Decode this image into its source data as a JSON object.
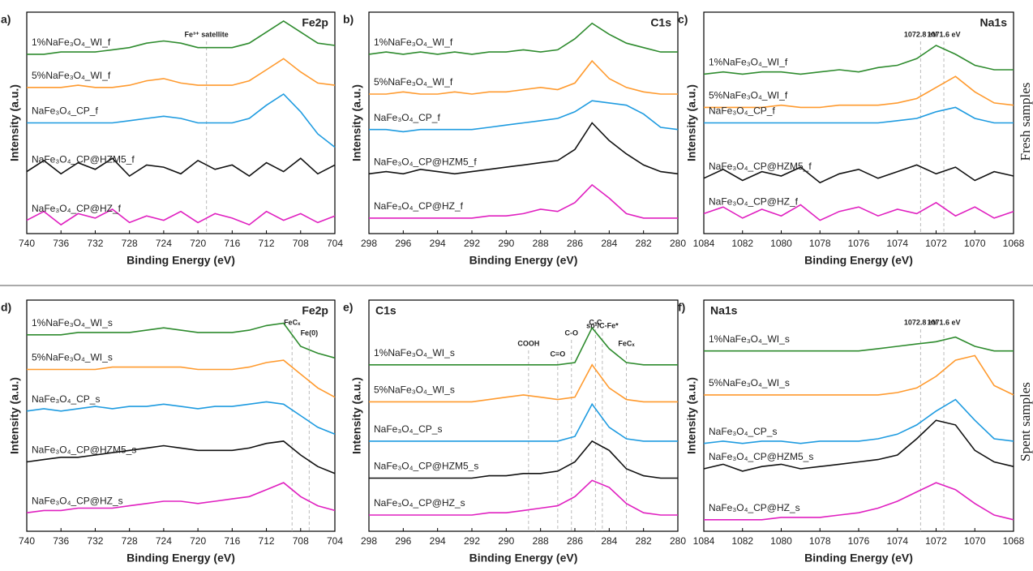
{
  "side_labels": [
    "Fresh samples",
    "Spent samples"
  ],
  "chart_data": [
    {
      "type": "line",
      "panel": "a)",
      "element": "Fe2p",
      "xlabel": "Binding Energy (eV)",
      "ylabel": "Intensity (a.u.)",
      "xlim": [
        740,
        704
      ],
      "xticks": [
        740,
        736,
        732,
        728,
        724,
        720,
        716,
        712,
        708,
        704
      ],
      "ylim": [
        0,
        100
      ],
      "x": [
        740,
        738,
        736,
        734,
        732,
        730,
        728,
        726,
        724,
        722,
        720,
        718,
        716,
        714,
        712,
        710,
        708,
        706,
        704
      ],
      "annotations": [
        {
          "text": "Fe³⁺ satellite",
          "x": 719
        }
      ],
      "series": [
        {
          "name": "1%NaFe₃O₄_WI_f",
          "color": "#2e8b2e",
          "values": [
            81,
            81,
            82,
            82,
            82,
            83,
            84,
            86,
            87,
            86,
            84,
            84,
            84,
            86,
            91,
            96,
            91,
            86,
            85
          ]
        },
        {
          "name": "5%NaFe₃O₄_WI_f",
          "color": "#ff9a2e",
          "values": [
            66,
            66,
            66,
            67,
            66,
            66,
            67,
            69,
            70,
            68,
            67,
            67,
            67,
            69,
            74,
            79,
            73,
            68,
            67
          ]
        },
        {
          "name": "NaFe₃O₄_CP_f",
          "color": "#1e9be0",
          "values": [
            50,
            50,
            50,
            50,
            50,
            50,
            51,
            52,
            53,
            52,
            50,
            50,
            50,
            52,
            58,
            63,
            55,
            45,
            39
          ]
        },
        {
          "name": "NaFe₃O₄_CP@HZM5_f",
          "color": "#111111",
          "values": [
            28,
            33,
            27,
            32,
            29,
            34,
            26,
            31,
            30,
            27,
            33,
            29,
            31,
            26,
            32,
            28,
            34,
            27,
            31
          ]
        },
        {
          "name": "NaFe₃O₄_CP@HZ_f",
          "color": "#e020c0",
          "values": [
            6,
            10,
            4,
            9,
            7,
            11,
            5,
            8,
            6,
            10,
            5,
            9,
            7,
            4,
            10,
            6,
            9,
            5,
            8
          ]
        }
      ]
    },
    {
      "type": "line",
      "panel": "b)",
      "element": "C1s",
      "xlabel": "Binding Energy (eV)",
      "ylabel": "Intensity (a.u.)",
      "xlim": [
        298,
        280
      ],
      "xticks": [
        298,
        296,
        294,
        292,
        290,
        288,
        286,
        284,
        282,
        280
      ],
      "ylim": [
        0,
        100
      ],
      "x": [
        298,
        297,
        296,
        295,
        294,
        293,
        292,
        291,
        290,
        289,
        288,
        287,
        286,
        285,
        284,
        283,
        282,
        281,
        280
      ],
      "annotations": [],
      "series": [
        {
          "name": "1%NaFe₃O₄_WI_f",
          "color": "#2e8b2e",
          "values": [
            81,
            82,
            81,
            82,
            81,
            82,
            81,
            82,
            82,
            83,
            82,
            83,
            88,
            95,
            90,
            86,
            84,
            82,
            82
          ]
        },
        {
          "name": "5%NaFe₃O₄_WI_f",
          "color": "#ff9a2e",
          "values": [
            63,
            63,
            64,
            63,
            63,
            64,
            63,
            64,
            64,
            65,
            66,
            65,
            68,
            78,
            70,
            66,
            64,
            63,
            63
          ]
        },
        {
          "name": "NaFe₃O₄_CP_f",
          "color": "#1e9be0",
          "values": [
            47,
            47,
            46,
            47,
            47,
            47,
            47,
            48,
            49,
            50,
            51,
            52,
            55,
            60,
            59,
            58,
            54,
            48,
            47
          ]
        },
        {
          "name": "NaFe₃O₄_CP@HZM5_f",
          "color": "#111111",
          "values": [
            27,
            28,
            27,
            29,
            28,
            27,
            28,
            29,
            30,
            31,
            32,
            33,
            38,
            50,
            42,
            36,
            31,
            28,
            27
          ]
        },
        {
          "name": "NaFe₃O₄_CP@HZ_f",
          "color": "#e020c0",
          "values": [
            7,
            7,
            7,
            7,
            7,
            7,
            7,
            8,
            8,
            9,
            11,
            10,
            14,
            22,
            16,
            9,
            7,
            7,
            7
          ]
        }
      ]
    },
    {
      "type": "line",
      "panel": "c)",
      "element": "Na1s",
      "xlabel": "Binding Energy (eV)",
      "ylabel": "Intensity (a.u.)",
      "xlim": [
        1084,
        1068
      ],
      "xticks": [
        1084,
        1082,
        1080,
        1078,
        1076,
        1074,
        1072,
        1070,
        1068
      ],
      "ylim": [
        0,
        100
      ],
      "x": [
        1084,
        1083,
        1082,
        1081,
        1080,
        1079,
        1078,
        1077,
        1076,
        1075,
        1074,
        1073,
        1072,
        1071,
        1070,
        1069,
        1068
      ],
      "annotations": [
        {
          "text": "1072.8 eV",
          "x": 1072.8
        },
        {
          "text": "1071.6 eV",
          "x": 1071.6
        }
      ],
      "series": [
        {
          "name": "1%NaFe₃O₄_WI_f",
          "color": "#2e8b2e",
          "values": [
            72,
            73,
            72,
            73,
            73,
            72,
            73,
            74,
            73,
            75,
            76,
            79,
            85,
            81,
            76,
            74,
            74
          ]
        },
        {
          "name": "5%NaFe₃O₄_WI_f",
          "color": "#ff9a2e",
          "values": [
            57,
            57,
            57,
            57,
            58,
            57,
            57,
            58,
            58,
            58,
            59,
            61,
            66,
            71,
            64,
            59,
            58
          ]
        },
        {
          "name": "NaFe₃O₄_CP_f",
          "color": "#1e9be0",
          "values": [
            50,
            50,
            50,
            50,
            50,
            50,
            50,
            50,
            50,
            50,
            51,
            52,
            55,
            57,
            52,
            50,
            50
          ]
        },
        {
          "name": "NaFe₃O₄_CP@HZM5_f",
          "color": "#111111",
          "values": [
            25,
            29,
            24,
            28,
            26,
            30,
            23,
            27,
            29,
            25,
            28,
            31,
            27,
            30,
            24,
            28,
            26
          ]
        },
        {
          "name": "NaFe₃O₄_CP@HZ_f",
          "color": "#e020c0",
          "values": [
            9,
            12,
            7,
            11,
            8,
            13,
            6,
            10,
            12,
            8,
            11,
            9,
            14,
            8,
            12,
            7,
            10
          ]
        }
      ]
    },
    {
      "type": "line",
      "panel": "d)",
      "element": "Fe2p",
      "xlabel": "Binding Energy (eV)",
      "ylabel": "Intensity (a.u.)",
      "xlim": [
        740,
        704
      ],
      "xticks": [
        740,
        736,
        732,
        728,
        724,
        720,
        716,
        712,
        708,
        704
      ],
      "ylim": [
        0,
        100
      ],
      "x": [
        740,
        738,
        736,
        734,
        732,
        730,
        728,
        726,
        724,
        722,
        720,
        718,
        716,
        714,
        712,
        710,
        708,
        706,
        704
      ],
      "annotations": [
        {
          "text": "FeCₓ",
          "x": 709
        },
        {
          "text": "Fe(0)",
          "x": 707
        }
      ],
      "series": [
        {
          "name": "1%NaFe₃O₄_WI_s",
          "color": "#2e8b2e",
          "values": [
            85,
            85,
            85,
            86,
            86,
            86,
            86,
            87,
            88,
            87,
            86,
            86,
            86,
            87,
            89,
            90,
            80,
            77,
            75
          ]
        },
        {
          "name": "5%NaFe₃O₄_WI_s",
          "color": "#ff9a2e",
          "values": [
            70,
            70,
            70,
            70,
            70,
            71,
            71,
            71,
            71,
            71,
            70,
            70,
            70,
            71,
            73,
            74,
            68,
            62,
            58
          ]
        },
        {
          "name": "NaFe₃O₄_CP_s",
          "color": "#1e9be0",
          "values": [
            52,
            53,
            52,
            53,
            54,
            53,
            54,
            54,
            55,
            54,
            53,
            54,
            54,
            55,
            56,
            55,
            50,
            45,
            42
          ]
        },
        {
          "name": "NaFe₃O₄_CP@HZM5_s",
          "color": "#111111",
          "values": [
            30,
            31,
            32,
            32,
            33,
            34,
            35,
            36,
            37,
            36,
            35,
            35,
            35,
            36,
            38,
            39,
            33,
            28,
            25
          ]
        },
        {
          "name": "NaFe₃O₄_CP@HZ_s",
          "color": "#e020c0",
          "values": [
            8,
            9,
            9,
            10,
            10,
            10,
            11,
            12,
            13,
            13,
            12,
            13,
            14,
            15,
            18,
            21,
            15,
            11,
            9
          ]
        }
      ]
    },
    {
      "type": "line",
      "panel": "e)",
      "element": "C1s",
      "xlabel": "Binding Energy (eV)",
      "ylabel": "Intensity (a.u.)",
      "xlim": [
        298,
        280
      ],
      "xticks": [
        298,
        296,
        294,
        292,
        290,
        288,
        286,
        284,
        282,
        280
      ],
      "ylim": [
        0,
        100
      ],
      "x": [
        298,
        297,
        296,
        295,
        294,
        293,
        292,
        291,
        290,
        289,
        288,
        287,
        286,
        285,
        284,
        283,
        282,
        281,
        280
      ],
      "annotations": [
        {
          "text": "COOH",
          "x": 288.7
        },
        {
          "text": "C=O",
          "x": 287
        },
        {
          "text": "C-O",
          "x": 286.2
        },
        {
          "text": "C-C",
          "x": 284.8
        },
        {
          "text": "sp²/C-Fe*",
          "x": 284.4
        },
        {
          "text": "FeCₓ",
          "x": 283
        }
      ],
      "series": [
        {
          "name": "1%NaFe₃O₄_WI_s",
          "color": "#2e8b2e",
          "values": [
            72,
            72,
            72,
            72,
            72,
            72,
            72,
            72,
            72,
            72,
            72,
            72,
            73,
            88,
            79,
            73,
            72,
            72,
            72
          ]
        },
        {
          "name": "5%NaFe₃O₄_WI_s",
          "color": "#ff9a2e",
          "values": [
            56,
            56,
            56,
            56,
            56,
            56,
            56,
            57,
            58,
            59,
            58,
            57,
            58,
            72,
            62,
            57,
            56,
            56,
            56
          ]
        },
        {
          "name": "NaFe₃O₄_CP_s",
          "color": "#1e9be0",
          "values": [
            39,
            39,
            39,
            39,
            39,
            39,
            39,
            39,
            39,
            39,
            39,
            39,
            41,
            55,
            45,
            40,
            39,
            39,
            39
          ]
        },
        {
          "name": "NaFe₃O₄_CP@HZM5_s",
          "color": "#111111",
          "values": [
            23,
            23,
            23,
            23,
            23,
            23,
            23,
            24,
            24,
            25,
            25,
            26,
            30,
            39,
            35,
            27,
            24,
            23,
            23
          ]
        },
        {
          "name": "NaFe₃O₄_CP@HZ_s",
          "color": "#e020c0",
          "values": [
            7,
            7,
            7,
            7,
            7,
            7,
            7,
            8,
            8,
            9,
            10,
            11,
            15,
            22,
            19,
            12,
            8,
            7,
            7
          ]
        }
      ]
    },
    {
      "type": "line",
      "panel": "f)",
      "element": "Na1s",
      "xlabel": "Binding Energy (eV)",
      "ylabel": "Intensity (a.u.)",
      "xlim": [
        1084,
        1068
      ],
      "xticks": [
        1084,
        1082,
        1080,
        1078,
        1076,
        1074,
        1072,
        1070,
        1068
      ],
      "ylim": [
        0,
        100
      ],
      "x": [
        1084,
        1083,
        1082,
        1081,
        1080,
        1079,
        1078,
        1077,
        1076,
        1075,
        1074,
        1073,
        1072,
        1071,
        1070,
        1069,
        1068
      ],
      "annotations": [
        {
          "text": "1072.8 eV",
          "x": 1072.8
        },
        {
          "text": "1071.6 eV",
          "x": 1071.6
        }
      ],
      "series": [
        {
          "name": "1%NaFe₃O₄_WI_s",
          "color": "#2e8b2e",
          "values": [
            78,
            78,
            78,
            78,
            78,
            78,
            78,
            78,
            78,
            79,
            80,
            81,
            82,
            84,
            80,
            78,
            78
          ]
        },
        {
          "name": "5%NaFe₃O₄_WI_s",
          "color": "#ff9a2e",
          "values": [
            59,
            59,
            59,
            59,
            59,
            59,
            59,
            59,
            59,
            59,
            60,
            62,
            67,
            74,
            76,
            63,
            59
          ]
        },
        {
          "name": "NaFe₃O₄_CP_s",
          "color": "#1e9be0",
          "values": [
            38,
            39,
            38,
            39,
            39,
            38,
            39,
            39,
            39,
            40,
            42,
            46,
            52,
            57,
            48,
            40,
            39
          ]
        },
        {
          "name": "NaFe₃O₄_CP@HZM5_s",
          "color": "#111111",
          "values": [
            27,
            29,
            26,
            28,
            29,
            27,
            28,
            29,
            30,
            31,
            33,
            40,
            48,
            46,
            35,
            30,
            28
          ]
        },
        {
          "name": "NaFe₃O₄_CP@HZ_s",
          "color": "#e020c0",
          "values": [
            5,
            5,
            5,
            5,
            6,
            6,
            6,
            7,
            8,
            10,
            13,
            17,
            21,
            18,
            12,
            7,
            5
          ]
        }
      ]
    }
  ]
}
